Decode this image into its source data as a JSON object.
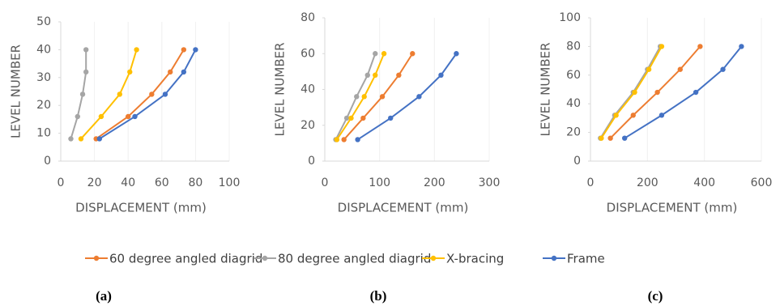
{
  "chart_data": [
    {
      "type": "line",
      "caption": "(a)",
      "xlabel": "DISPLACEMENT (mm)",
      "ylabel": "LEVEL NUMBER",
      "xlim": [
        0,
        100
      ],
      "xticks": [
        0,
        20,
        40,
        60,
        80,
        100
      ],
      "ylim": [
        0,
        50
      ],
      "yticks": [
        0,
        10,
        20,
        30,
        40,
        50
      ],
      "grid": "x",
      "series": [
        {
          "x": [
            21,
            40,
            54,
            65,
            73
          ],
          "values": [
            8,
            16,
            24,
            32,
            40
          ]
        },
        {
          "x": [
            6,
            10,
            13,
            15,
            15
          ],
          "values": [
            8,
            16,
            24,
            32,
            40
          ]
        },
        {
          "x": [
            12,
            24,
            35,
            41,
            45
          ],
          "values": [
            8,
            16,
            24,
            32,
            40
          ]
        },
        {
          "x": [
            23,
            44,
            62,
            73,
            80
          ],
          "values": [
            8,
            16,
            24,
            32,
            40
          ]
        }
      ]
    },
    {
      "type": "line",
      "caption": "(b)",
      "xlabel": "DISPLACEMENT (mm)",
      "ylabel": "LEVEL NUMBER",
      "xlim": [
        0,
        300
      ],
      "xticks": [
        0,
        100,
        200,
        300
      ],
      "ylim": [
        0,
        80
      ],
      "yticks": [
        0,
        20,
        40,
        60,
        80
      ],
      "grid": "x",
      "series": [
        {
          "x": [
            35,
            70,
            105,
            135,
            160
          ],
          "values": [
            12,
            24,
            36,
            48,
            60
          ]
        },
        {
          "x": [
            20,
            40,
            58,
            78,
            92
          ],
          "values": [
            12,
            24,
            36,
            48,
            60
          ]
        },
        {
          "x": [
            22,
            48,
            72,
            92,
            108
          ],
          "values": [
            12,
            24,
            36,
            48,
            60
          ]
        },
        {
          "x": [
            60,
            120,
            172,
            212,
            240
          ],
          "values": [
            12,
            24,
            36,
            48,
            60
          ]
        }
      ]
    },
    {
      "type": "line",
      "caption": "(c)",
      "xlabel": "DISPLACEMENT (mm)",
      "ylabel": "LEVEL NUMBER",
      "xlim": [
        0,
        600
      ],
      "xticks": [
        0,
        200,
        400,
        600
      ],
      "ylim": [
        0,
        100
      ],
      "yticks": [
        0,
        20,
        40,
        60,
        80,
        100
      ],
      "grid": "x",
      "series": [
        {
          "x": [
            70,
            150,
            235,
            315,
            385
          ],
          "values": [
            16,
            32,
            48,
            64,
            80
          ]
        },
        {
          "x": [
            35,
            85,
            150,
            200,
            245
          ],
          "values": [
            16,
            32,
            48,
            64,
            80
          ]
        },
        {
          "x": [
            38,
            90,
            155,
            205,
            250
          ],
          "values": [
            16,
            32,
            48,
            64,
            80
          ]
        },
        {
          "x": [
            120,
            250,
            370,
            465,
            530
          ],
          "values": [
            16,
            32,
            48,
            64,
            80
          ]
        }
      ]
    }
  ],
  "legend": [
    {
      "name": "60 degree angled diagrid",
      "color": "#ed7d31"
    },
    {
      "name": "80 degree angled diagrid",
      "color": "#a5a5a5"
    },
    {
      "name": "X-bracing",
      "color": "#ffc000"
    },
    {
      "name": "Frame",
      "color": "#4472c4"
    }
  ]
}
